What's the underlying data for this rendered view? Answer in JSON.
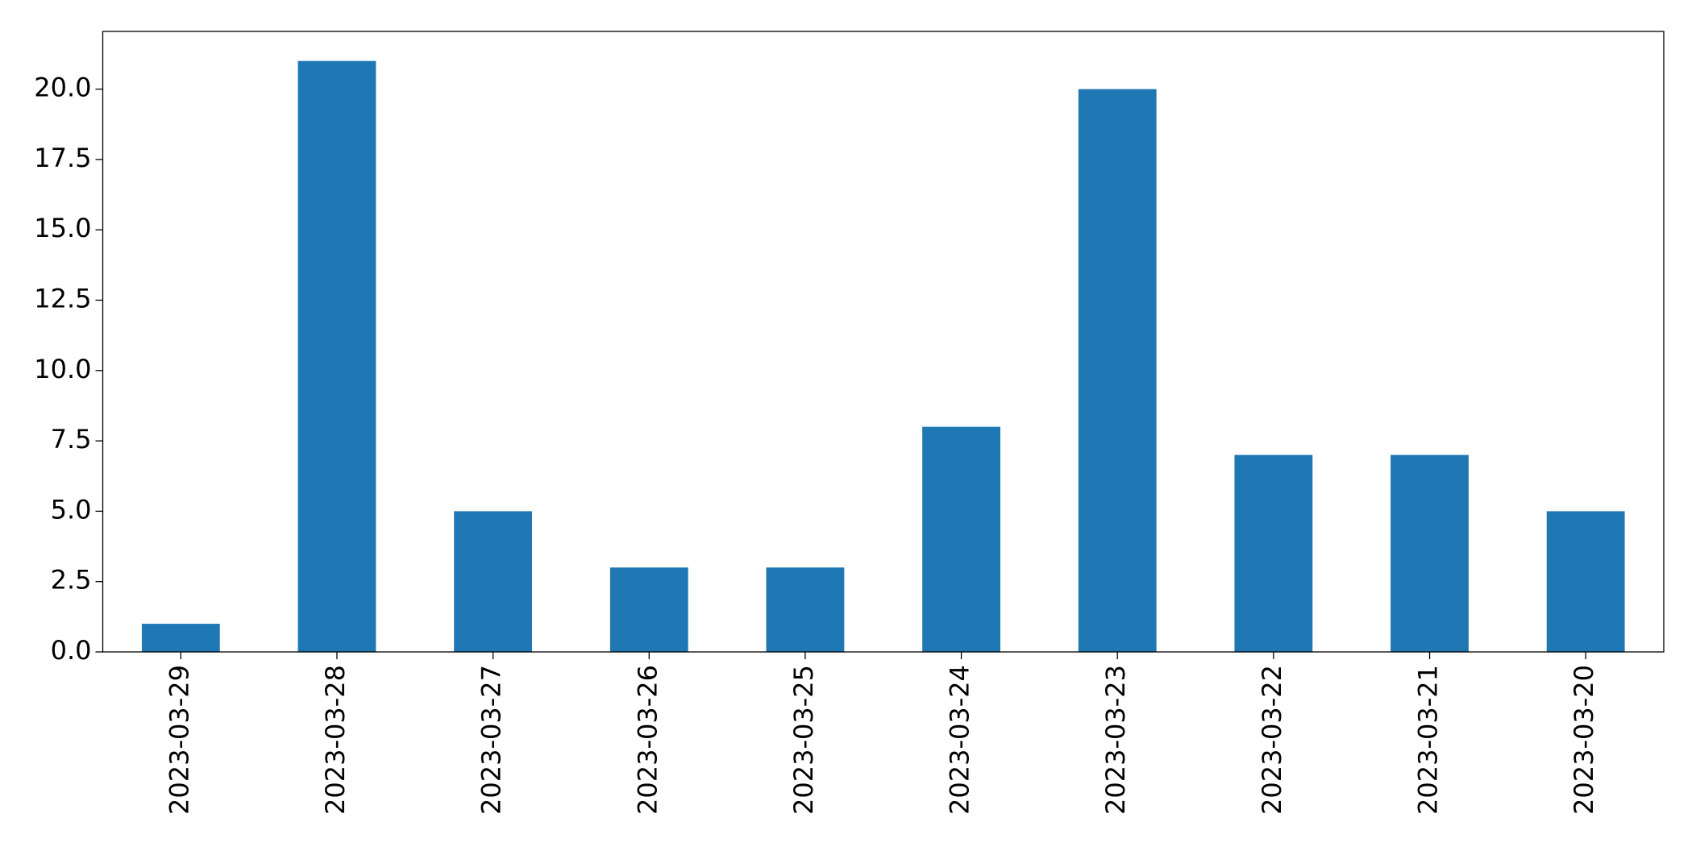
{
  "chart_data": {
    "type": "bar",
    "categories": [
      "2023-03-29",
      "2023-03-28",
      "2023-03-27",
      "2023-03-26",
      "2023-03-25",
      "2023-03-24",
      "2023-03-23",
      "2023-03-22",
      "2023-03-21",
      "2023-03-20"
    ],
    "values": [
      1,
      21,
      5,
      3,
      3,
      8,
      20,
      7,
      7,
      5
    ],
    "color": "#1f77b4",
    "ylim": [
      0,
      22.05
    ],
    "yticks": [
      {
        "value": 0,
        "label": "0.0"
      },
      {
        "value": 2.5,
        "label": "2.5"
      },
      {
        "value": 5,
        "label": "5.0"
      },
      {
        "value": 7.5,
        "label": "7.5"
      },
      {
        "value": 10,
        "label": "10.0"
      },
      {
        "value": 12.5,
        "label": "12.5"
      },
      {
        "value": 15,
        "label": "15.0"
      },
      {
        "value": 17.5,
        "label": "17.5"
      },
      {
        "value": 20,
        "label": "20.0"
      }
    ],
    "grid": false
  }
}
